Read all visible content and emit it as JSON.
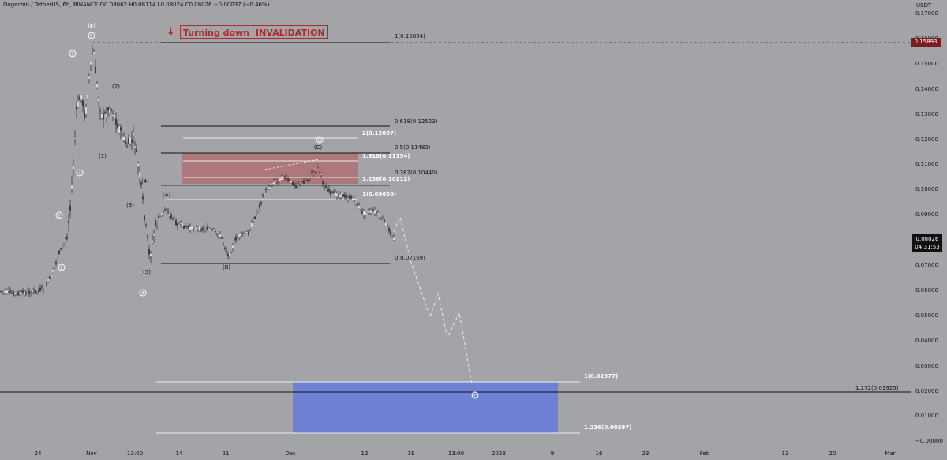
{
  "header": {
    "symbol": "Dogecoin / TetherUS, 6h, BINANCE",
    "ohlc": "O0.08062 H0.08114 L0.08024 C0.08026 −0.00037 (−0.46%)"
  },
  "price_axis": {
    "unit": "USDT",
    "ticks": [
      "0.17000",
      "0.16000",
      "0.15000",
      "0.14000",
      "0.13000",
      "0.12000",
      "0.11000",
      "0.10000",
      "0.09000",
      "0.08000",
      "0.07000",
      "0.06000",
      "0.05000",
      "0.04000",
      "0.03000",
      "0.02000",
      "0.01000",
      "−0.00000"
    ],
    "invalidation_tag": "0.15893",
    "last_price": "0.08026",
    "countdown": "04:31:53"
  },
  "time_axis": {
    "ticks": [
      "24",
      "Nov",
      "13:00",
      "14",
      "21",
      "Dec",
      "12",
      "19",
      "13:00",
      "2023",
      "9",
      "16",
      "23",
      "Feb",
      "13",
      "20",
      "Mar"
    ]
  },
  "annotations": {
    "arrow": "↓",
    "turning_down": "Turning down",
    "invalidation": "INVALIDATION"
  },
  "fib_labels": {
    "top": "1(0.15894)",
    "f0618": "0.618(0.12523)",
    "ext2": "2(0.12097)",
    "f05": "0.5(0.11482)",
    "ext1618": "1.618(0.11154)",
    "f0382": "0.382(0.10440)",
    "ext1236": "1.236(0.10212)",
    "ext1": "1(0.09630)",
    "f0": "0(0.07169)",
    "t1": "1(0.02377)",
    "t1272": "1.272(0.01925)",
    "t1236": "1.236(0.00297)"
  },
  "waves": {
    "c_top": "(c)",
    "c_circ": "5",
    "w3c": "3",
    "w4c": "4",
    "w1c": "1",
    "w2c": "2",
    "p1": "(1)",
    "p2": "(2)",
    "p3": "(3)",
    "p4": "(4)",
    "p5": "(5)",
    "A_circ": "A",
    "pA": "(A)",
    "pB": "(B)",
    "pC": "(C)",
    "B_circ": "B",
    "C_circ": "C"
  },
  "colors": {
    "background": "#a3a4a7",
    "invalidation_red": "#b02a2a",
    "zone_red": "#b06a6e",
    "target_blue": "#6b7fd6"
  }
}
